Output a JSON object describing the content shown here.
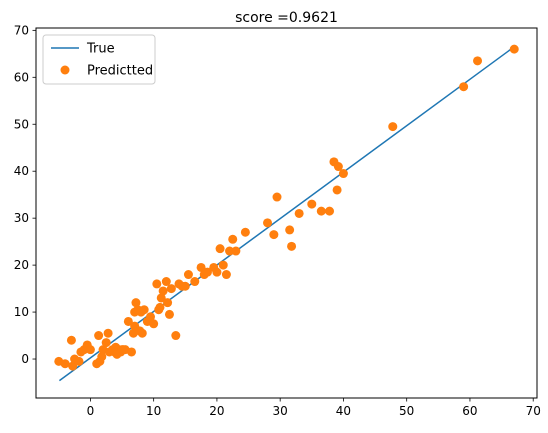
{
  "chart_data": {
    "type": "scatter",
    "title": "score =0.9621",
    "xlabel": "",
    "ylabel": "",
    "xlim": [
      -8.6,
      70.6
    ],
    "ylim": [
      -8.3,
      70.5
    ],
    "xticks": [
      0,
      10,
      20,
      30,
      40,
      50,
      60,
      70
    ],
    "yticks": [
      0,
      10,
      20,
      30,
      40,
      50,
      60,
      70
    ],
    "grid": false,
    "legend_position": "top-left",
    "series": [
      {
        "name": "True",
        "kind": "line",
        "color": "#1f77b4",
        "x": [
          -4.9,
          67.0
        ],
        "y": [
          -4.6,
          66.5
        ]
      },
      {
        "name": "Predictted",
        "kind": "scatter",
        "color": "#ff7f0e",
        "x": [
          -5.0,
          -4.0,
          -3.0,
          -2.8,
          -2.5,
          -1.8,
          -1.5,
          -1.0,
          -0.5,
          0.0,
          1.0,
          1.3,
          1.5,
          1.8,
          2.0,
          2.5,
          2.8,
          3.0,
          3.5,
          3.8,
          4.0,
          4.2,
          4.5,
          4.8,
          5.0,
          5.2,
          5.5,
          6.0,
          6.5,
          6.8,
          7.0,
          7.0,
          7.2,
          7.5,
          7.8,
          8.0,
          8.2,
          8.5,
          9.0,
          9.5,
          10.0,
          10.5,
          10.8,
          11.0,
          11.2,
          11.5,
          12.0,
          12.2,
          12.5,
          12.8,
          13.5,
          14.0,
          14.5,
          15.0,
          15.5,
          16.5,
          17.5,
          18.0,
          18.5,
          19.5,
          20.0,
          20.5,
          21.0,
          21.5,
          22.0,
          22.5,
          23.0,
          24.5,
          28.0,
          29.0,
          29.5,
          31.5,
          31.8,
          33.0,
          35.0,
          36.5,
          37.8,
          38.5,
          39.0,
          39.2,
          40.0,
          47.8,
          59.0,
          61.2,
          67.0
        ],
        "y": [
          -0.5,
          -1.0,
          4.0,
          -1.5,
          0.0,
          -0.5,
          1.5,
          2.0,
          3.0,
          2.0,
          -1.0,
          5.0,
          -0.5,
          0.5,
          2.0,
          3.5,
          5.5,
          1.5,
          2.0,
          1.5,
          2.5,
          1.0,
          2.0,
          1.5,
          2.0,
          2.0,
          2.0,
          8.0,
          1.5,
          5.5,
          7.0,
          10.0,
          12.0,
          10.5,
          6.0,
          10.0,
          5.5,
          10.5,
          8.0,
          9.0,
          7.5,
          16.0,
          10.5,
          11.0,
          13.0,
          14.5,
          16.5,
          12.0,
          9.5,
          15.0,
          5.0,
          16.0,
          15.5,
          15.5,
          18.0,
          16.5,
          19.5,
          18.0,
          18.5,
          19.5,
          18.5,
          23.5,
          20.0,
          18.0,
          23.0,
          25.5,
          23.0,
          27.0,
          29.0,
          26.5,
          34.5,
          27.5,
          24.0,
          31.0,
          33.0,
          31.5,
          31.5,
          42.0,
          36.0,
          41.0,
          39.5,
          49.5,
          58.0,
          63.5,
          66.0
        ]
      }
    ]
  }
}
